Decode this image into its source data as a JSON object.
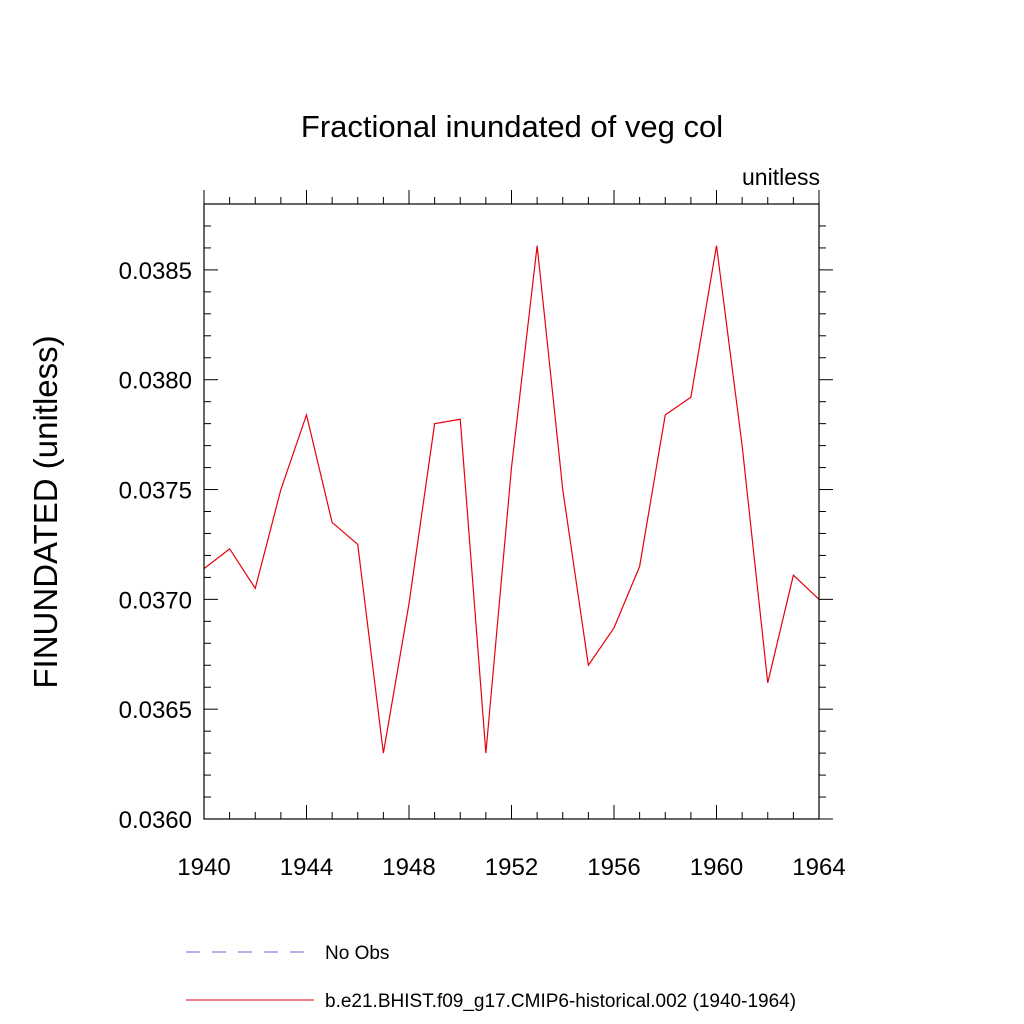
{
  "chart_data": {
    "type": "line",
    "title": "Fractional inundated of veg col",
    "units_label": "unitless",
    "xlabel": "",
    "ylabel": "FINUNDATED  (unitless)",
    "xlim": [
      1940,
      1964
    ],
    "ylim": [
      0.036,
      0.0388
    ],
    "x_ticks": [
      "1940",
      "1944",
      "1948",
      "1952",
      "1956",
      "1960",
      "1964"
    ],
    "y_ticks": [
      "0.0360",
      "0.0365",
      "0.0370",
      "0.0375",
      "0.0380",
      "0.0385"
    ],
    "grid": false,
    "legend_position": "bottom",
    "series": [
      {
        "name": "No Obs",
        "color": "#6b6bd6",
        "style": "dashed",
        "x": [],
        "values": []
      },
      {
        "name": "b.e21.BHIST.f09_g17.CMIP6-historical.002 (1940-1964)",
        "color": "#e8000b",
        "style": "solid",
        "x": [
          1940,
          1941,
          1942,
          1943,
          1944,
          1945,
          1946,
          1947,
          1948,
          1949,
          1950,
          1951,
          1952,
          1953,
          1954,
          1955,
          1956,
          1957,
          1958,
          1959,
          1960,
          1961,
          1962,
          1963,
          1964
        ],
        "values": [
          0.03714,
          0.03723,
          0.03705,
          0.0375,
          0.03784,
          0.03735,
          0.03725,
          0.0363,
          0.03698,
          0.0378,
          0.03782,
          0.0363,
          0.0376,
          0.03861,
          0.0375,
          0.0367,
          0.03687,
          0.03715,
          0.03784,
          0.03792,
          0.03861,
          0.0377,
          0.03662,
          0.03711,
          0.037
        ]
      }
    ]
  }
}
